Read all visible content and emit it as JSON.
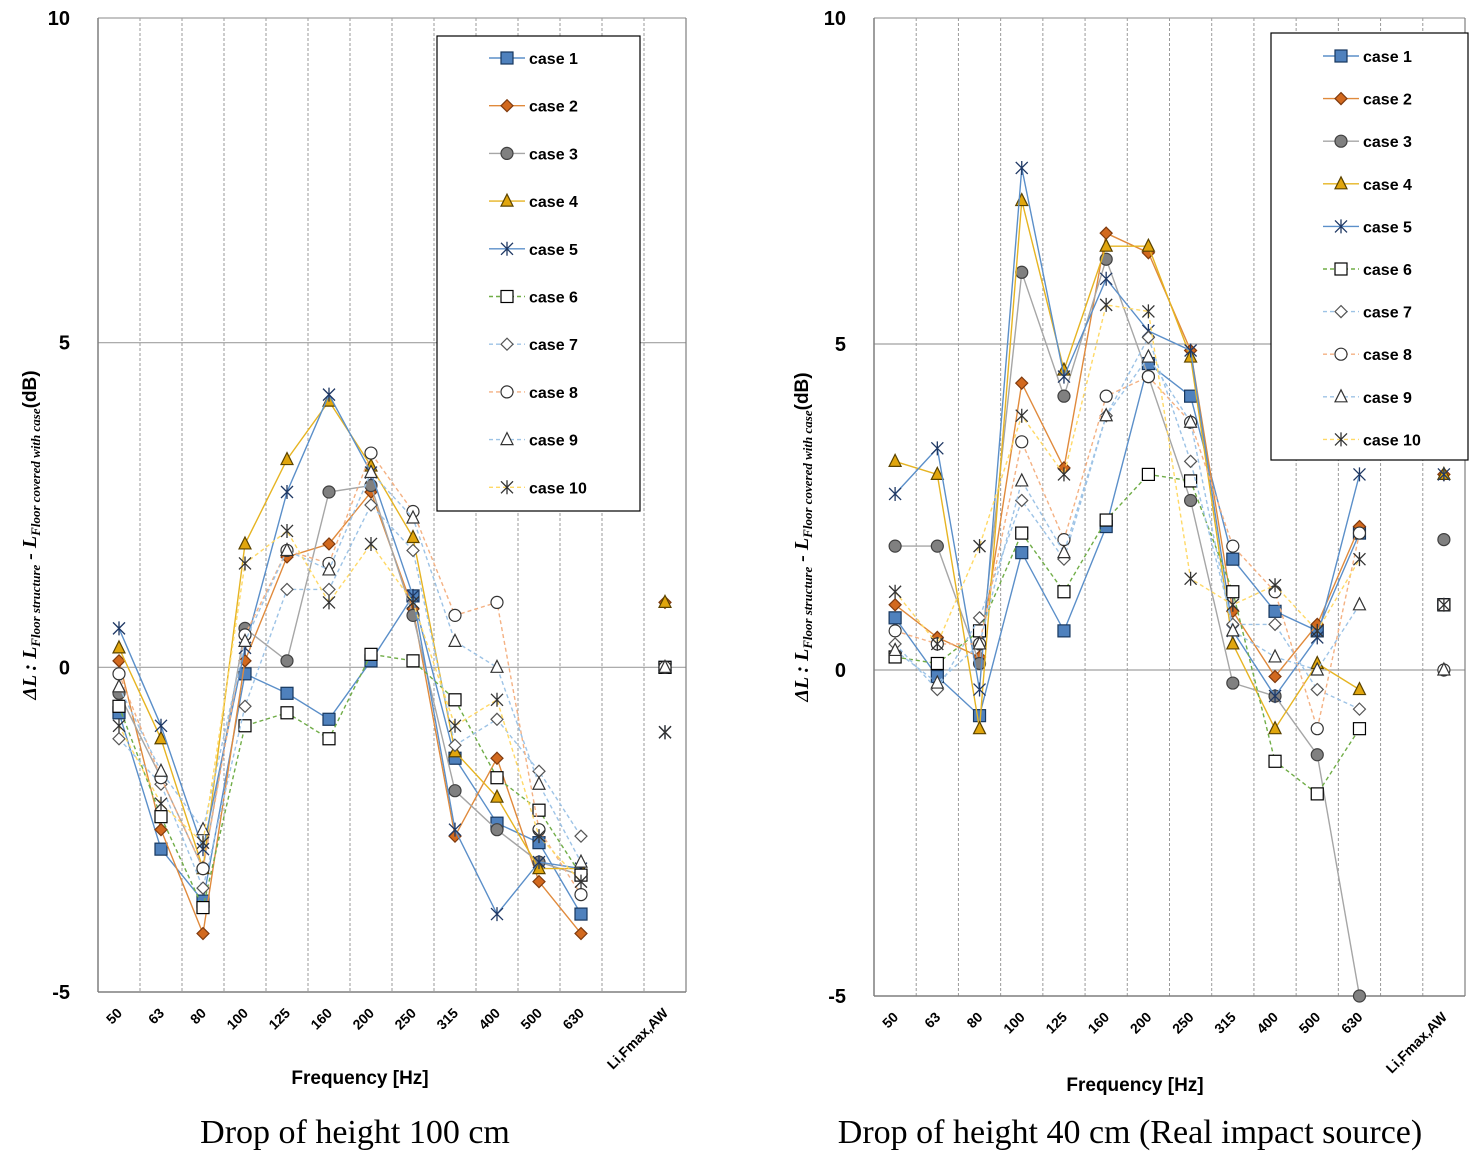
{
  "chart_data": [
    {
      "type": "line",
      "caption": "Drop of height 100 cm",
      "xlabel": "Frequency [Hz]",
      "ylabel": {
        "prefix": "ΔL : L",
        "sub1": "Floor structure",
        "mid": " - L",
        "sub2": "Floor covered with case",
        "unit": "(dB)"
      },
      "ylim": [
        -5,
        10
      ],
      "yticks": [
        "-5",
        "0",
        "5",
        "10"
      ],
      "categories": [
        "50",
        "63",
        "80",
        "100",
        "125",
        "160",
        "200",
        "250",
        "315",
        "400",
        "500",
        "630",
        "",
        "Li,Fmax,AW"
      ],
      "legend_position": "top-right",
      "series": [
        {
          "name": "case 1",
          "values": [
            -0.7,
            -2.8,
            -3.6,
            -0.1,
            -0.4,
            -0.8,
            0.1,
            1.1,
            -1.4,
            -2.4,
            -2.7,
            -3.8,
            null,
            0
          ]
        },
        {
          "name": "case 2",
          "values": [
            0.1,
            -2.5,
            -4.1,
            0.1,
            1.7,
            1.9,
            2.7,
            0.9,
            -2.6,
            -1.4,
            -3.3,
            -4.1,
            null,
            1
          ]
        },
        {
          "name": "case 3",
          "values": [
            -0.4,
            -1.7,
            -3.1,
            0.6,
            0.1,
            2.7,
            2.8,
            0.8,
            -1.9,
            -2.5,
            -3.0,
            -3.2,
            null,
            0
          ]
        },
        {
          "name": "case 4",
          "values": [
            0.3,
            -1.1,
            -3.1,
            1.9,
            3.2,
            4.1,
            3.1,
            2.0,
            -1.3,
            -2.0,
            -3.1,
            -3.1,
            null,
            1
          ]
        },
        {
          "name": "case 5",
          "values": [
            0.6,
            -0.9,
            -2.8,
            0.3,
            2.7,
            4.2,
            3.0,
            1.1,
            -2.5,
            -3.8,
            -3.0,
            -3.1,
            null,
            -1
          ]
        },
        {
          "name": "case 6",
          "values": [
            -0.6,
            -2.3,
            -3.7,
            -0.9,
            -0.7,
            -1.1,
            0.2,
            0.1,
            -0.5,
            -1.7,
            -2.2,
            -3.2,
            null,
            0
          ]
        },
        {
          "name": "case 7",
          "values": [
            -1.1,
            -1.8,
            -3.4,
            -0.6,
            1.2,
            1.2,
            2.5,
            1.8,
            -1.2,
            -0.8,
            -1.6,
            -2.6,
            null,
            0
          ]
        },
        {
          "name": "case 8",
          "values": [
            -0.1,
            -1.7,
            -3.1,
            0.5,
            1.8,
            1.6,
            3.3,
            2.4,
            0.8,
            1.0,
            -2.5,
            -3.5,
            null,
            0
          ]
        },
        {
          "name": "case 9",
          "values": [
            -0.3,
            -1.6,
            -2.5,
            0.4,
            1.8,
            1.5,
            3.0,
            2.3,
            0.4,
            0.0,
            -1.8,
            -3.0,
            null,
            0
          ]
        },
        {
          "name": "case 10",
          "values": [
            -0.9,
            -2.1,
            -2.7,
            1.6,
            2.1,
            1.0,
            1.9,
            1.0,
            -0.9,
            -0.5,
            -2.6,
            -3.3,
            null,
            -1
          ]
        }
      ]
    },
    {
      "type": "line",
      "caption": "Drop of height 40 cm (Real impact source)",
      "xlabel": "Frequency [Hz]",
      "ylabel": {
        "prefix": "ΔL : L",
        "sub1": "Floor structure",
        "mid": " - L",
        "sub2": "Floor covered with case",
        "unit": "(dB)"
      },
      "ylim": [
        -5,
        10
      ],
      "yticks": [
        "-5",
        "0",
        "5",
        "10"
      ],
      "categories": [
        "50",
        "63",
        "80",
        "100",
        "125",
        "160",
        "200",
        "250",
        "315",
        "400",
        "500",
        "630",
        "",
        "Li,Fmax,AW"
      ],
      "legend_position": "top-right",
      "series": [
        {
          "name": "case 1",
          "values": [
            0.8,
            -0.1,
            -0.7,
            1.8,
            0.6,
            2.2,
            4.7,
            4.2,
            1.7,
            0.9,
            0.6,
            2.1,
            null,
            1
          ]
        },
        {
          "name": "case 2",
          "values": [
            1.0,
            0.5,
            0.2,
            4.4,
            3.1,
            6.7,
            6.4,
            4.9,
            0.9,
            -0.1,
            0.7,
            2.2,
            null,
            3
          ]
        },
        {
          "name": "case 3",
          "values": [
            1.9,
            1.9,
            0.1,
            6.1,
            4.2,
            6.3,
            4.5,
            2.6,
            -0.2,
            -0.4,
            -1.3,
            -5.0,
            null,
            2
          ]
        },
        {
          "name": "case 4",
          "values": [
            3.2,
            3.0,
            -0.9,
            7.2,
            4.6,
            6.5,
            6.5,
            4.8,
            0.4,
            -0.9,
            0.1,
            -0.3,
            null,
            3
          ]
        },
        {
          "name": "case 5",
          "values": [
            2.7,
            3.4,
            -0.3,
            7.7,
            4.5,
            6.0,
            5.2,
            4.9,
            0.6,
            -0.4,
            0.5,
            3.0,
            null,
            3
          ]
        },
        {
          "name": "case 6",
          "values": [
            0.2,
            0.1,
            0.6,
            2.1,
            1.2,
            2.3,
            3.0,
            2.9,
            1.2,
            -1.4,
            -1.9,
            -0.9,
            null,
            1
          ]
        },
        {
          "name": "case 7",
          "values": [
            0.4,
            -0.3,
            0.8,
            2.6,
            1.7,
            3.9,
            5.1,
            3.2,
            0.7,
            0.7,
            -0.3,
            -0.6,
            null,
            0
          ]
        },
        {
          "name": "case 8",
          "values": [
            0.6,
            0.4,
            0.4,
            3.5,
            2.0,
            4.2,
            4.5,
            3.8,
            1.9,
            1.2,
            -0.9,
            2.1,
            null,
            0
          ]
        },
        {
          "name": "case 9",
          "values": [
            0.3,
            -0.2,
            0.4,
            2.9,
            1.8,
            3.9,
            4.8,
            3.8,
            0.6,
            0.2,
            0.0,
            1.0,
            null,
            0
          ]
        },
        {
          "name": "case 10",
          "values": [
            1.2,
            0.4,
            1.9,
            3.9,
            3.0,
            5.6,
            5.5,
            1.4,
            1.0,
            1.3,
            0.6,
            1.7,
            null,
            1
          ]
        }
      ]
    }
  ],
  "styles": [
    {
      "marker": "square",
      "line": "#5b8fc9",
      "fill": "#4f81bd",
      "stroke": "#17375e",
      "dash": ""
    },
    {
      "marker": "diamond",
      "line": "#e08a3c",
      "fill": "#d2691e",
      "stroke": "#7f3a0e",
      "dash": ""
    },
    {
      "marker": "circle",
      "line": "#a6a6a6",
      "fill": "#808080",
      "stroke": "#404040",
      "dash": ""
    },
    {
      "marker": "triangle",
      "line": "#e6b422",
      "fill": "#e1a60d",
      "stroke": "#5a4300",
      "dash": ""
    },
    {
      "marker": "asterisk",
      "line": "#5b8fc9",
      "fill": "none",
      "stroke": "#1f3864",
      "dash": ""
    },
    {
      "marker": "square-open",
      "line": "#70ad47",
      "fill": "#ffffff",
      "stroke": "#000000",
      "dash": "4,3"
    },
    {
      "marker": "diamond-open",
      "line": "#9dc3e6",
      "fill": "#ffffff",
      "stroke": "#555555",
      "dash": "4,3"
    },
    {
      "marker": "circle-open",
      "line": "#f4b183",
      "fill": "#ffffff",
      "stroke": "#333333",
      "dash": "4,3"
    },
    {
      "marker": "triangle-open",
      "line": "#9dc3e6",
      "fill": "#ffffff",
      "stroke": "#333333",
      "dash": "4,3"
    },
    {
      "marker": "asterisk",
      "line": "#ffd966",
      "fill": "none",
      "stroke": "#333333",
      "dash": "4,3"
    }
  ]
}
